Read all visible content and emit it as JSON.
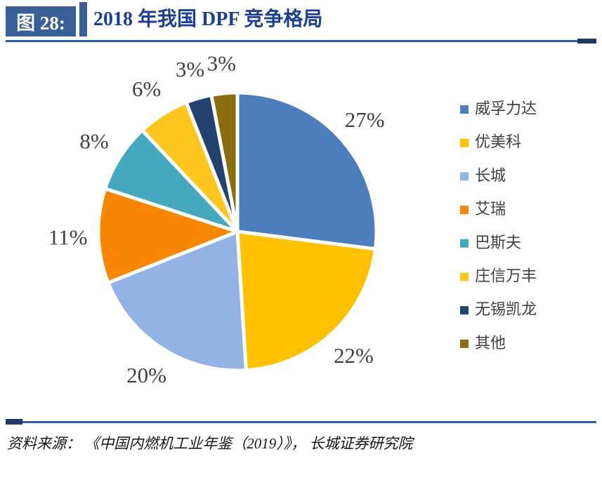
{
  "figure_header": {
    "label": "图 28:",
    "title": "2018 年我国 DPF 竞争格局"
  },
  "source_note": "资料来源： 《中国内燃机工业年鉴（2019）》， 长城证券研究院",
  "chart_data": {
    "type": "pie",
    "title": "2018 年我国 DPF 竞争格局",
    "categories": [
      "威孚力达",
      "优美科",
      "长城",
      "艾瑞",
      "巴斯夫",
      "庄信万丰",
      "无锡凯龙",
      "其他"
    ],
    "values": [
      27,
      22,
      20,
      11,
      8,
      6,
      3,
      3
    ],
    "unit": "%",
    "data_labels": [
      "27%",
      "22%",
      "20%",
      "11%",
      "8%",
      "6%",
      "3%",
      "3%"
    ],
    "colors": [
      "#4C7DBC",
      "#FFC000",
      "#92B3E4",
      "#F98600",
      "#44A9BF",
      "#FDC51E",
      "#24426F",
      "#8A6D0E"
    ],
    "slice_border_color": "#FFFFFF",
    "legend_position": "right",
    "legend_entries": [
      "威孚力达",
      "优美科",
      "长城",
      "艾瑞",
      "巴斯夫",
      "庄信万丰",
      "无锡凯龙",
      "其他"
    ],
    "start_angle_deg": 0,
    "direction": "clockwise"
  },
  "theme": {
    "header_box_bg": "#3A5F96",
    "header_label_color": "#FFFFFF",
    "title_color": "#1C3F92",
    "rule_color": "#2D5BA4",
    "rule_tip_color": "#1F3864",
    "data_label_color": "#3F4045",
    "legend_text_color": "#3F3F3F",
    "source_text_color": "#14141E"
  }
}
